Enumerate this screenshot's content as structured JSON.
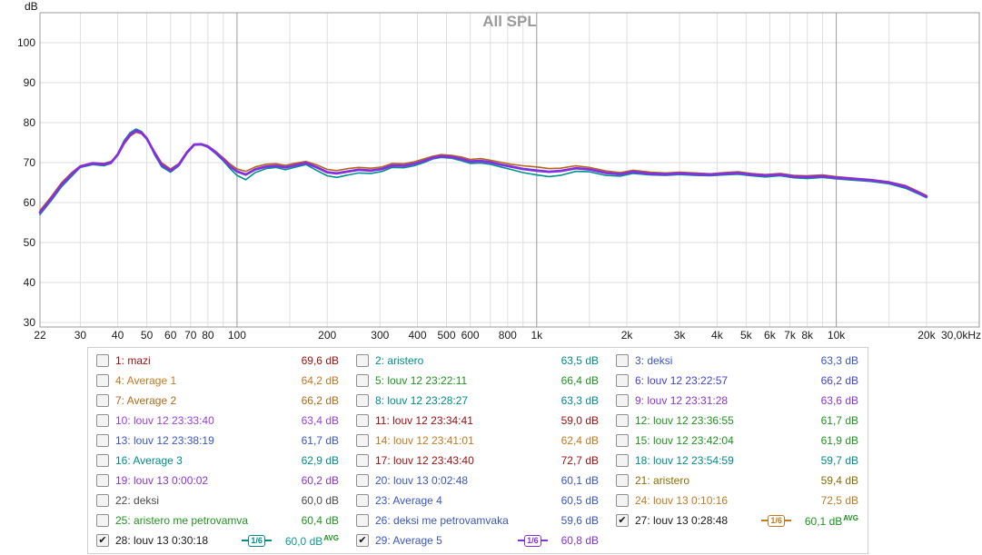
{
  "chart_data": {
    "type": "line",
    "title": "All SPL",
    "ylabel_unit": "dB",
    "x_scale": "log",
    "xlim": [
      22,
      30000
    ],
    "ylim": [
      28.9,
      107.6
    ],
    "y_ticks": [
      100,
      90,
      80,
      70,
      60,
      50,
      40,
      30
    ],
    "x_ticks": [
      {
        "f": 22,
        "label": "22"
      },
      {
        "f": 30,
        "label": "30"
      },
      {
        "f": 40,
        "label": "40"
      },
      {
        "f": 50,
        "label": "50"
      },
      {
        "f": 60,
        "label": "60"
      },
      {
        "f": 70,
        "label": "70"
      },
      {
        "f": 80,
        "label": "80"
      },
      {
        "f": 100,
        "label": "100"
      },
      {
        "f": 200,
        "label": "200"
      },
      {
        "f": 300,
        "label": "300"
      },
      {
        "f": 400,
        "label": "400"
      },
      {
        "f": 500,
        "label": "500"
      },
      {
        "f": 600,
        "label": "600"
      },
      {
        "f": 800,
        "label": "800"
      },
      {
        "f": 1000,
        "label": "1k"
      },
      {
        "f": 2000,
        "label": "2k"
      },
      {
        "f": 3000,
        "label": "3k"
      },
      {
        "f": 4000,
        "label": "4k"
      },
      {
        "f": 5000,
        "label": "5k"
      },
      {
        "f": 6000,
        "label": "6k"
      },
      {
        "f": 7000,
        "label": "7k"
      },
      {
        "f": 8000,
        "label": "8k"
      },
      {
        "f": 10000,
        "label": "10k"
      },
      {
        "f": 20000,
        "label": "20k"
      },
      {
        "f": 30000,
        "label": "30,0kHz"
      }
    ],
    "grid": {
      "minor": [
        30,
        40,
        50,
        60,
        70,
        80,
        90,
        150,
        200,
        300,
        400,
        500,
        600,
        700,
        800,
        900,
        1500,
        2000,
        3000,
        4000,
        5000,
        6000,
        7000,
        8000,
        9000,
        15000,
        20000
      ],
      "major": [
        100,
        1000,
        10000
      ]
    },
    "x": [
      22,
      24,
      26,
      28,
      30,
      33,
      36,
      38,
      40,
      42,
      44,
      46,
      48,
      50,
      53,
      56,
      60,
      64,
      68,
      72,
      76,
      80,
      85,
      90,
      95,
      100,
      107,
      115,
      125,
      135,
      145,
      155,
      170,
      185,
      200,
      215,
      235,
      255,
      280,
      305,
      330,
      360,
      390,
      420,
      450,
      480,
      520,
      560,
      600,
      650,
      700,
      760,
      820,
      900,
      1000,
      1100,
      1200,
      1350,
      1500,
      1700,
      1900,
      2100,
      2400,
      2700,
      3000,
      3400,
      3800,
      4200,
      4700,
      5200,
      5800,
      6500,
      7200,
      8000,
      9000,
      10000,
      11500,
      13000,
      15000,
      17000,
      19000,
      20000
    ],
    "series": [
      {
        "name": "27: louv 13 0:28:48",
        "color": "#b5651d",
        "width": 1.6,
        "y": [
          58,
          61.5,
          65,
          67.4,
          69.2,
          70,
          69.8,
          70.3,
          71.8,
          74.6,
          76.6,
          77.6,
          77.2,
          75.8,
          72.8,
          70,
          68.4,
          69.8,
          72.7,
          74.6,
          74.7,
          74.2,
          72.8,
          71.2,
          69.6,
          68.4,
          67.8,
          68.9,
          69.6,
          69.7,
          69.3,
          69.8,
          70.3,
          69.4,
          68.3,
          68,
          68.5,
          68.8,
          68.6,
          68.9,
          69.8,
          69.7,
          70.2,
          70.9,
          71.6,
          72,
          71.8,
          71.4,
          70.8,
          71,
          70.6,
          70.1,
          69.6,
          69.2,
          68.9,
          68.5,
          68.6,
          69.2,
          68.8,
          67.9,
          67.5,
          68.1,
          67.6,
          67.4,
          67.6,
          67.4,
          67.2,
          67.5,
          67.7,
          67.3,
          67,
          67.3,
          66.8,
          66.7,
          66.9,
          66.5,
          66.1,
          65.8,
          65.2,
          64.3,
          62.6,
          61.8
        ]
      },
      {
        "name": "28: louv 13 0:30:18",
        "color": "#009090",
        "width": 1.6,
        "y": [
          57,
          60.5,
          64,
          66.5,
          68.8,
          69.5,
          69.2,
          69.8,
          72.2,
          75.5,
          77.5,
          78.4,
          77.8,
          76.2,
          72,
          69,
          67.6,
          69.2,
          72.3,
          74.4,
          74.5,
          73.8,
          72.2,
          70.4,
          68.4,
          66.8,
          65.7,
          67.5,
          68.5,
          68.8,
          68.2,
          68.8,
          69.5,
          68,
          66.7,
          66.3,
          66.9,
          67.4,
          67.3,
          67.8,
          68.8,
          68.7,
          69.2,
          70,
          70.9,
          71.3,
          71.1,
          70.5,
          69.8,
          69.9,
          69.6,
          68.9,
          68.3,
          67.5,
          66.9,
          66.5,
          66.8,
          67.8,
          67.7,
          66.8,
          66.6,
          67.3,
          66.9,
          66.8,
          67,
          66.8,
          66.7,
          66.9,
          67.1,
          66.7,
          66.4,
          66.7,
          66.2,
          66,
          66.3,
          65.9,
          65.6,
          65.3,
          64.7,
          63.6,
          62,
          61.2
        ]
      },
      {
        "name": "29: Average 5",
        "color": "#8230e0",
        "width": 2.8,
        "y": [
          57.5,
          61,
          64.5,
          67,
          69,
          69.8,
          69.6,
          70,
          72,
          75,
          77,
          78,
          77.5,
          76,
          72.5,
          69.5,
          68,
          69.5,
          72.5,
          74.5,
          74.6,
          74,
          72.5,
          70.8,
          69,
          67.8,
          67,
          68.3,
          69,
          69.2,
          68.8,
          69.3,
          69.9,
          68.8,
          67.6,
          67.3,
          67.8,
          68.2,
          68,
          68.4,
          69.3,
          69.2,
          69.7,
          70.4,
          71.2,
          71.6,
          71.4,
          70.9,
          70.3,
          70.4,
          70.1,
          69.5,
          69,
          68.4,
          68,
          67.7,
          67.9,
          68.6,
          68.3,
          67.4,
          67.1,
          67.7,
          67.2,
          67.1,
          67.3,
          67.1,
          67,
          67.2,
          67.4,
          67,
          66.8,
          67,
          66.5,
          66.4,
          66.6,
          66.2,
          65.9,
          65.6,
          65,
          64,
          62.3,
          61.5
        ]
      }
    ]
  },
  "legend": {
    "check_glyph": "✔",
    "avg_suffix": "AVG",
    "avg_color": "#18961b",
    "entries": [
      {
        "label": "1: mazi",
        "value": "69,6 dB",
        "color": "#a01010",
        "checked": false
      },
      {
        "label": "2: aristero",
        "value": "63,5 dB",
        "color": "#008b8b",
        "checked": false
      },
      {
        "label": "3: deksi",
        "value": "63,3 dB",
        "color": "#3a56c4",
        "checked": false
      },
      {
        "label": "4: Average 1",
        "value": "64,2 dB",
        "color": "#c07a20",
        "checked": false
      },
      {
        "label": "5: louv 12 23:22:11",
        "value": "66,4 dB",
        "color": "#1f941f",
        "checked": false
      },
      {
        "label": "6: louv 12 23:22:57",
        "value": "66,2 dB",
        "color": "#4343cf",
        "checked": false
      },
      {
        "label": "7: Average 2",
        "value": "66,2 dB",
        "color": "#b06a1a",
        "checked": false
      },
      {
        "label": "8: louv 12 23:28:27",
        "value": "63,3 dB",
        "color": "#008b8b",
        "checked": false
      },
      {
        "label": "9: louv 12 23:31:28",
        "value": "63,6 dB",
        "color": "#8a35cf",
        "checked": false
      },
      {
        "label": "10: louv 12 23:33:40",
        "value": "63,4 dB",
        "color": "#9a40e0",
        "checked": false
      },
      {
        "label": "11: louv 12 23:34:41",
        "value": "59,0 dB",
        "color": "#a01010",
        "checked": false
      },
      {
        "label": "12: louv 12 23:36:55",
        "value": "61,7 dB",
        "color": "#1f941f",
        "checked": false
      },
      {
        "label": "13: louv 12 23:38:19",
        "value": "61,7 dB",
        "color": "#3a56c4",
        "checked": false
      },
      {
        "label": "14: louv 12 23:41:01",
        "value": "62,4 dB",
        "color": "#c07a20",
        "checked": false
      },
      {
        "label": "15: louv 12 23:42:04",
        "value": "61,9 dB",
        "color": "#1f941f",
        "checked": false
      },
      {
        "label": "16: Average 3",
        "value": "62,9 dB",
        "color": "#008b8b",
        "checked": false
      },
      {
        "label": "17: louv 12 23:43:40",
        "value": "72,7 dB",
        "color": "#a01010",
        "checked": false
      },
      {
        "label": "18: louv 12 23:54:59",
        "value": "59,7 dB",
        "color": "#008b8b",
        "checked": false
      },
      {
        "label": "19: louv 13 0:00:02",
        "value": "60,2 dB",
        "color": "#8a35cf",
        "checked": false
      },
      {
        "label": "20: louv 13 0:02:48",
        "value": "60,1 dB",
        "color": "#3a56c4",
        "checked": false
      },
      {
        "label": "21: aristero",
        "value": "59,4 dB",
        "color": "#8a6d00",
        "checked": false
      },
      {
        "label": "22: deksi",
        "value": "60,0 dB",
        "color": "#4a4a4a",
        "checked": false
      },
      {
        "label": "23: Average 4",
        "value": "60,5 dB",
        "color": "#3a56c4",
        "checked": false
      },
      {
        "label": "24: louv 13 0:10:16",
        "value": "72,5 dB",
        "color": "#c07a20",
        "checked": false
      },
      {
        "label": "25: aristero me petrovamva",
        "value": "60,4 dB",
        "color": "#1f941f",
        "checked": false
      },
      {
        "label": "26: deksi me petrovamvaka",
        "value": "59,6 dB",
        "color": "#3a56c4",
        "checked": false
      },
      {
        "label": "27: louv 13 0:28:48",
        "value": "60,1 dB",
        "color": "#1a1a1a",
        "value_color": "#18961b",
        "checked": true,
        "badge": "1/6",
        "badge_color": "#c07a20",
        "avg": true
      },
      {
        "label": "28: louv 13 0:30:18",
        "value": "60,0 dB",
        "color": "#1a1a1a",
        "value_color": "#0f9b90",
        "checked": true,
        "badge": "1/6",
        "badge_color": "#008b8b",
        "avg": true
      },
      {
        "label": "29: Average 5",
        "value": "60,8 dB",
        "color": "#3a56c4",
        "value_color": "#8533d6",
        "checked": true,
        "badge": "1/6",
        "badge_color": "#8533d6",
        "avg": false
      }
    ]
  }
}
